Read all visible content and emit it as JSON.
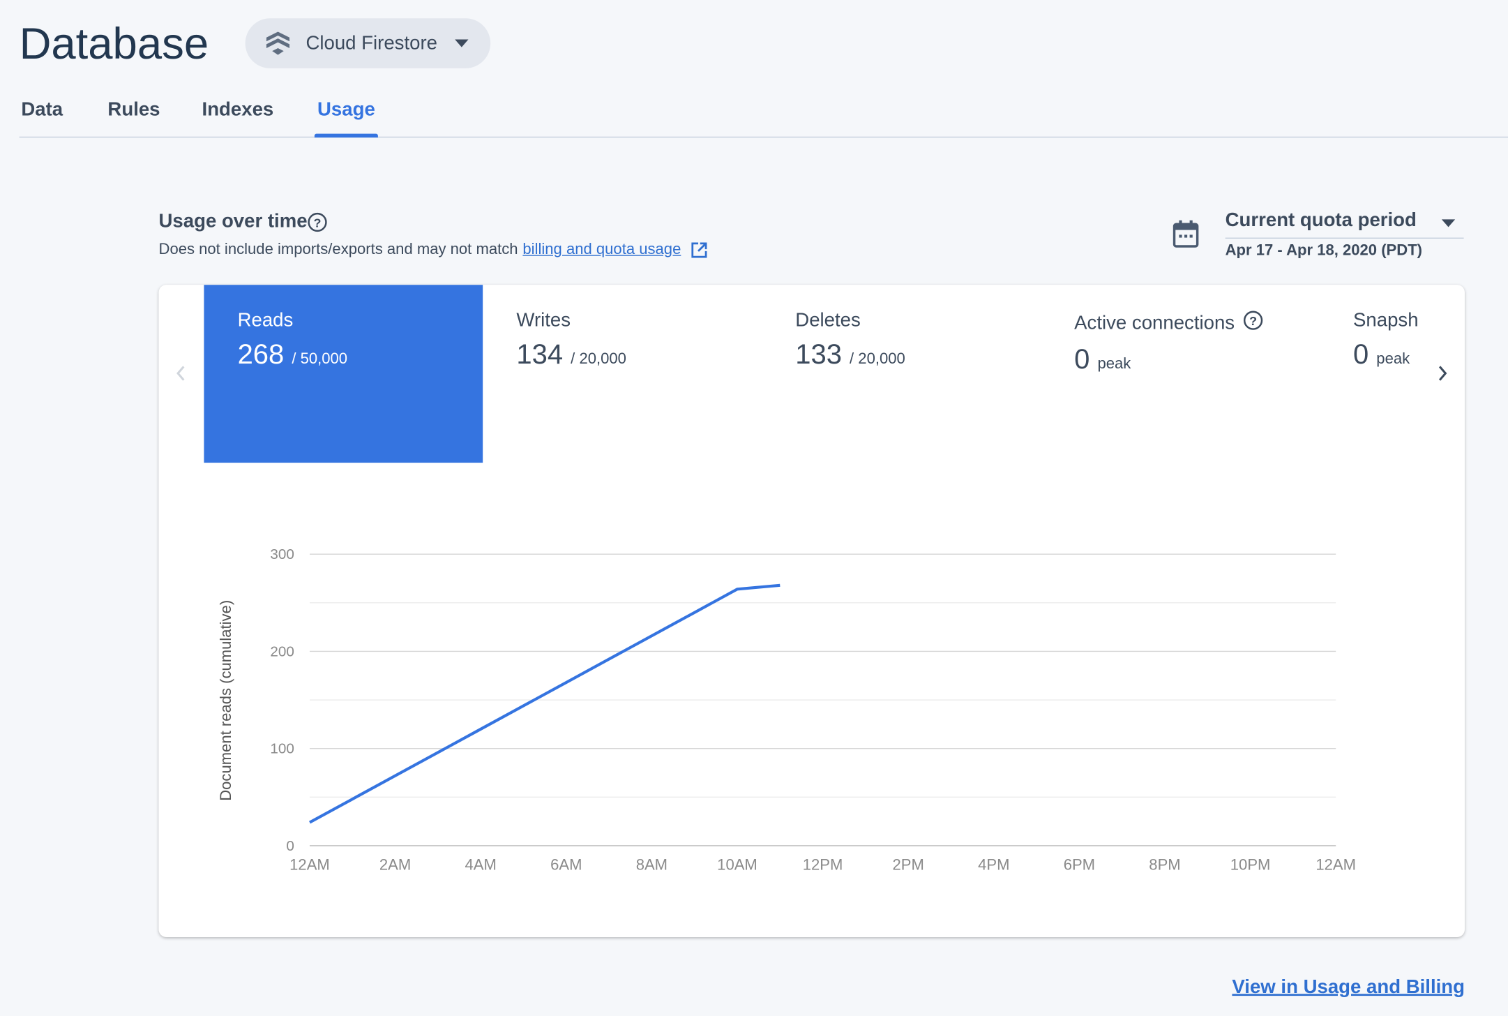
{
  "header": {
    "title": "Database",
    "database_selector": "Cloud Firestore"
  },
  "tabs": [
    "Data",
    "Rules",
    "Indexes",
    "Usage"
  ],
  "active_tab": 3,
  "usage": {
    "title": "Usage over time",
    "note": "Does not include imports/exports and may not match",
    "note_link": "billing and quota usage",
    "period_label": "Current quota period",
    "period_range": "Apr 17 - Apr 18, 2020 (PDT)"
  },
  "selected_metric": 0,
  "metrics": [
    {
      "label": "Reads",
      "value": 268,
      "detail": "/ 50,000"
    },
    {
      "label": "Writes",
      "value": 134,
      "detail": "/ 20,000"
    },
    {
      "label": "Deletes",
      "value": 133,
      "detail": "/ 20,000"
    },
    {
      "label": "Active connections",
      "value": 0,
      "detail": "peak",
      "help": true
    },
    {
      "label": "Snapsh",
      "value": 0,
      "detail": "peak"
    }
  ],
  "chart": {
    "type": "line",
    "y_label": "Document reads (cumulative)",
    "color": "#3574e0",
    "grid": true,
    "x": [
      0,
      1,
      2,
      3,
      4,
      5,
      6,
      7,
      8,
      9,
      10,
      11
    ],
    "values": [
      24,
      48,
      72,
      96,
      120,
      144,
      168,
      192,
      216,
      240,
      264,
      268
    ],
    "xlim": [
      0,
      24
    ],
    "xticks": [
      {
        "value": 0,
        "label": "12AM"
      },
      {
        "value": 2,
        "label": "2AM"
      },
      {
        "value": 4,
        "label": "4AM"
      },
      {
        "value": 6,
        "label": "6AM"
      },
      {
        "value": 8,
        "label": "8AM"
      },
      {
        "value": 10,
        "label": "10AM"
      },
      {
        "value": 12,
        "label": "12PM"
      },
      {
        "value": 14,
        "label": "2PM"
      },
      {
        "value": 16,
        "label": "4PM"
      },
      {
        "value": 18,
        "label": "6PM"
      },
      {
        "value": 20,
        "label": "8PM"
      },
      {
        "value": 22,
        "label": "10PM"
      },
      {
        "value": 24,
        "label": "12AM"
      }
    ],
    "ylim": [
      0,
      300
    ],
    "yticks": [
      0,
      100,
      200,
      300
    ],
    "minor_yticks": [
      50,
      150,
      250
    ]
  },
  "footer_link": "View in Usage and Billing"
}
